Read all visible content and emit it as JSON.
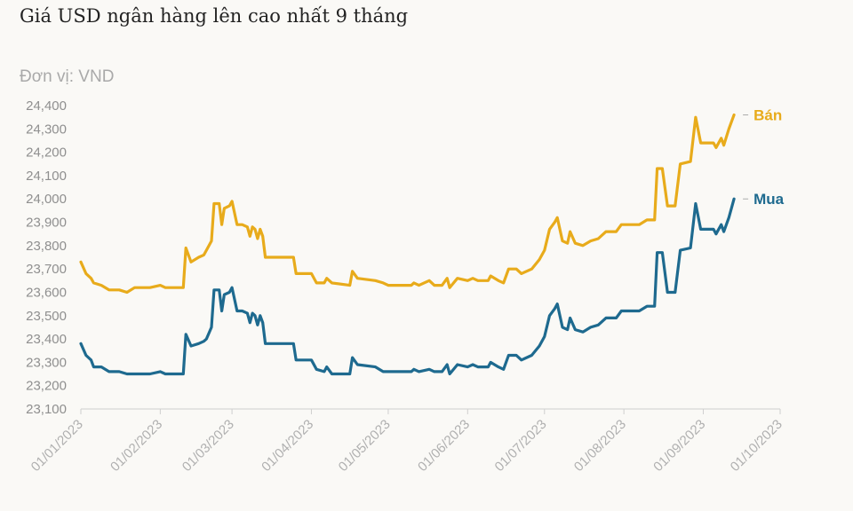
{
  "header": {
    "title": "Giá USD ngân hàng lên cao nhất 9 tháng",
    "unit": "Đơn vị: VND"
  },
  "chart_data": {
    "type": "line",
    "title": "Giá USD ngân hàng lên cao nhất 9 tháng",
    "ylabel": "Đơn vị: VND",
    "ylim": [
      23100,
      24400
    ],
    "yticks": [
      23100,
      23200,
      23300,
      23400,
      23500,
      23600,
      23700,
      23800,
      23900,
      24000,
      24100,
      24200,
      24300,
      24400
    ],
    "ytick_labels": [
      "23,100",
      "23,200",
      "23,300",
      "23,400",
      "23,500",
      "23,600",
      "23,700",
      "23,800",
      "23,900",
      "24,000",
      "24,100",
      "24,200",
      "24,300",
      "24,400"
    ],
    "xlim": [
      "2023-01-01",
      "2023-10-01"
    ],
    "xticks": [
      "2023-01-01",
      "2023-02-01",
      "2023-03-01",
      "2023-04-01",
      "2023-05-01",
      "2023-06-01",
      "2023-07-01",
      "2023-08-01",
      "2023-09-01",
      "2023-10-01"
    ],
    "xtick_labels": [
      "01/01/2023",
      "01/02/2023",
      "01/03/2023",
      "01/04/2023",
      "01/05/2023",
      "01/06/2023",
      "01/07/2023",
      "01/08/2023",
      "01/09/2023",
      "01/10/2023"
    ],
    "grid": false,
    "series": [
      {
        "name": "Bán",
        "color": "#e8ab1b",
        "points": [
          [
            "2023-01-01",
            23730
          ],
          [
            "2023-01-03",
            23680
          ],
          [
            "2023-01-05",
            23660
          ],
          [
            "2023-01-06",
            23640
          ],
          [
            "2023-01-09",
            23630
          ],
          [
            "2023-01-12",
            23610
          ],
          [
            "2023-01-16",
            23610
          ],
          [
            "2023-01-19",
            23600
          ],
          [
            "2023-01-22",
            23620
          ],
          [
            "2023-01-28",
            23620
          ],
          [
            "2023-02-01",
            23630
          ],
          [
            "2023-02-03",
            23620
          ],
          [
            "2023-02-07",
            23620
          ],
          [
            "2023-02-10",
            23620
          ],
          [
            "2023-02-11",
            23790
          ],
          [
            "2023-02-13",
            23730
          ],
          [
            "2023-02-16",
            23750
          ],
          [
            "2023-02-18",
            23760
          ],
          [
            "2023-02-19",
            23780
          ],
          [
            "2023-02-21",
            23820
          ],
          [
            "2023-02-22",
            23980
          ],
          [
            "2023-02-24",
            23980
          ],
          [
            "2023-02-25",
            23890
          ],
          [
            "2023-02-26",
            23960
          ],
          [
            "2023-02-28",
            23970
          ],
          [
            "2023-03-01",
            23990
          ],
          [
            "2023-03-03",
            23890
          ],
          [
            "2023-03-05",
            23890
          ],
          [
            "2023-03-07",
            23880
          ],
          [
            "2023-03-08",
            23840
          ],
          [
            "2023-03-09",
            23880
          ],
          [
            "2023-03-10",
            23870
          ],
          [
            "2023-03-11",
            23830
          ],
          [
            "2023-03-12",
            23870
          ],
          [
            "2023-03-13",
            23840
          ],
          [
            "2023-03-14",
            23750
          ],
          [
            "2023-03-18",
            23750
          ],
          [
            "2023-03-25",
            23750
          ],
          [
            "2023-03-26",
            23680
          ],
          [
            "2023-04-01",
            23680
          ],
          [
            "2023-04-03",
            23640
          ],
          [
            "2023-04-06",
            23640
          ],
          [
            "2023-04-07",
            23660
          ],
          [
            "2023-04-09",
            23640
          ],
          [
            "2023-04-16",
            23630
          ],
          [
            "2023-04-17",
            23690
          ],
          [
            "2023-04-19",
            23660
          ],
          [
            "2023-04-26",
            23650
          ],
          [
            "2023-04-29",
            23640
          ],
          [
            "2023-05-01",
            23630
          ],
          [
            "2023-05-10",
            23630
          ],
          [
            "2023-05-11",
            23640
          ],
          [
            "2023-05-13",
            23630
          ],
          [
            "2023-05-17",
            23650
          ],
          [
            "2023-05-19",
            23630
          ],
          [
            "2023-05-22",
            23630
          ],
          [
            "2023-05-24",
            23660
          ],
          [
            "2023-05-25",
            23620
          ],
          [
            "2023-05-28",
            23660
          ],
          [
            "2023-06-01",
            23650
          ],
          [
            "2023-06-03",
            23660
          ],
          [
            "2023-06-05",
            23650
          ],
          [
            "2023-06-09",
            23650
          ],
          [
            "2023-06-10",
            23670
          ],
          [
            "2023-06-13",
            23650
          ],
          [
            "2023-06-15",
            23640
          ],
          [
            "2023-06-17",
            23700
          ],
          [
            "2023-06-20",
            23700
          ],
          [
            "2023-06-22",
            23680
          ],
          [
            "2023-06-26",
            23700
          ],
          [
            "2023-06-29",
            23740
          ],
          [
            "2023-07-01",
            23780
          ],
          [
            "2023-07-03",
            23870
          ],
          [
            "2023-07-05",
            23900
          ],
          [
            "2023-07-06",
            23920
          ],
          [
            "2023-07-08",
            23820
          ],
          [
            "2023-07-10",
            23810
          ],
          [
            "2023-07-11",
            23860
          ],
          [
            "2023-07-13",
            23810
          ],
          [
            "2023-07-16",
            23800
          ],
          [
            "2023-07-19",
            23820
          ],
          [
            "2023-07-22",
            23830
          ],
          [
            "2023-07-25",
            23860
          ],
          [
            "2023-07-29",
            23860
          ],
          [
            "2023-07-31",
            23890
          ],
          [
            "2023-08-02",
            23890
          ],
          [
            "2023-08-07",
            23890
          ],
          [
            "2023-08-10",
            23910
          ],
          [
            "2023-08-13",
            23910
          ],
          [
            "2023-08-14",
            24130
          ],
          [
            "2023-08-16",
            24130
          ],
          [
            "2023-08-18",
            23970
          ],
          [
            "2023-08-21",
            23970
          ],
          [
            "2023-08-23",
            24150
          ],
          [
            "2023-08-27",
            24160
          ],
          [
            "2023-08-29",
            24350
          ],
          [
            "2023-08-31",
            24240
          ],
          [
            "2023-09-03",
            24240
          ],
          [
            "2023-09-05",
            24240
          ],
          [
            "2023-09-06",
            24220
          ],
          [
            "2023-09-08",
            24260
          ],
          [
            "2023-09-09",
            24230
          ],
          [
            "2023-09-11",
            24300
          ],
          [
            "2023-09-13",
            24360
          ]
        ]
      },
      {
        "name": "Mua",
        "color": "#1e6a8f",
        "points": [
          [
            "2023-01-01",
            23380
          ],
          [
            "2023-01-03",
            23330
          ],
          [
            "2023-01-05",
            23310
          ],
          [
            "2023-01-06",
            23280
          ],
          [
            "2023-01-09",
            23280
          ],
          [
            "2023-01-12",
            23260
          ],
          [
            "2023-01-16",
            23260
          ],
          [
            "2023-01-19",
            23250
          ],
          [
            "2023-01-22",
            23250
          ],
          [
            "2023-01-28",
            23250
          ],
          [
            "2023-02-01",
            23260
          ],
          [
            "2023-02-03",
            23250
          ],
          [
            "2023-02-07",
            23250
          ],
          [
            "2023-02-10",
            23250
          ],
          [
            "2023-02-11",
            23420
          ],
          [
            "2023-02-13",
            23370
          ],
          [
            "2023-02-16",
            23380
          ],
          [
            "2023-02-18",
            23390
          ],
          [
            "2023-02-19",
            23400
          ],
          [
            "2023-02-21",
            23450
          ],
          [
            "2023-02-22",
            23610
          ],
          [
            "2023-02-24",
            23610
          ],
          [
            "2023-02-25",
            23520
          ],
          [
            "2023-02-26",
            23590
          ],
          [
            "2023-02-28",
            23600
          ],
          [
            "2023-03-01",
            23620
          ],
          [
            "2023-03-03",
            23520
          ],
          [
            "2023-03-05",
            23520
          ],
          [
            "2023-03-07",
            23510
          ],
          [
            "2023-03-08",
            23470
          ],
          [
            "2023-03-09",
            23510
          ],
          [
            "2023-03-10",
            23500
          ],
          [
            "2023-03-11",
            23460
          ],
          [
            "2023-03-12",
            23500
          ],
          [
            "2023-03-13",
            23470
          ],
          [
            "2023-03-14",
            23380
          ],
          [
            "2023-03-18",
            23380
          ],
          [
            "2023-03-25",
            23380
          ],
          [
            "2023-03-26",
            23310
          ],
          [
            "2023-04-01",
            23310
          ],
          [
            "2023-04-03",
            23270
          ],
          [
            "2023-04-06",
            23260
          ],
          [
            "2023-04-07",
            23280
          ],
          [
            "2023-04-09",
            23250
          ],
          [
            "2023-04-16",
            23250
          ],
          [
            "2023-04-17",
            23320
          ],
          [
            "2023-04-19",
            23290
          ],
          [
            "2023-04-26",
            23280
          ],
          [
            "2023-04-29",
            23260
          ],
          [
            "2023-05-01",
            23260
          ],
          [
            "2023-05-10",
            23260
          ],
          [
            "2023-05-11",
            23270
          ],
          [
            "2023-05-13",
            23260
          ],
          [
            "2023-05-17",
            23270
          ],
          [
            "2023-05-19",
            23260
          ],
          [
            "2023-05-22",
            23260
          ],
          [
            "2023-05-24",
            23290
          ],
          [
            "2023-05-25",
            23250
          ],
          [
            "2023-05-28",
            23290
          ],
          [
            "2023-06-01",
            23280
          ],
          [
            "2023-06-03",
            23290
          ],
          [
            "2023-06-05",
            23280
          ],
          [
            "2023-06-09",
            23280
          ],
          [
            "2023-06-10",
            23300
          ],
          [
            "2023-06-13",
            23280
          ],
          [
            "2023-06-15",
            23270
          ],
          [
            "2023-06-17",
            23330
          ],
          [
            "2023-06-20",
            23330
          ],
          [
            "2023-06-22",
            23310
          ],
          [
            "2023-06-26",
            23330
          ],
          [
            "2023-06-29",
            23370
          ],
          [
            "2023-07-01",
            23410
          ],
          [
            "2023-07-03",
            23500
          ],
          [
            "2023-07-05",
            23530
          ],
          [
            "2023-07-06",
            23550
          ],
          [
            "2023-07-08",
            23450
          ],
          [
            "2023-07-10",
            23440
          ],
          [
            "2023-07-11",
            23490
          ],
          [
            "2023-07-13",
            23440
          ],
          [
            "2023-07-16",
            23430
          ],
          [
            "2023-07-19",
            23450
          ],
          [
            "2023-07-22",
            23460
          ],
          [
            "2023-07-25",
            23490
          ],
          [
            "2023-07-29",
            23490
          ],
          [
            "2023-07-31",
            23520
          ],
          [
            "2023-08-02",
            23520
          ],
          [
            "2023-08-07",
            23520
          ],
          [
            "2023-08-10",
            23540
          ],
          [
            "2023-08-13",
            23540
          ],
          [
            "2023-08-14",
            23770
          ],
          [
            "2023-08-16",
            23770
          ],
          [
            "2023-08-18",
            23600
          ],
          [
            "2023-08-21",
            23600
          ],
          [
            "2023-08-23",
            23780
          ],
          [
            "2023-08-27",
            23790
          ],
          [
            "2023-08-29",
            23980
          ],
          [
            "2023-08-31",
            23870
          ],
          [
            "2023-09-03",
            23870
          ],
          [
            "2023-09-05",
            23870
          ],
          [
            "2023-09-06",
            23850
          ],
          [
            "2023-09-08",
            23890
          ],
          [
            "2023-09-09",
            23860
          ],
          [
            "2023-09-11",
            23920
          ],
          [
            "2023-09-13",
            24000
          ]
        ]
      }
    ]
  }
}
